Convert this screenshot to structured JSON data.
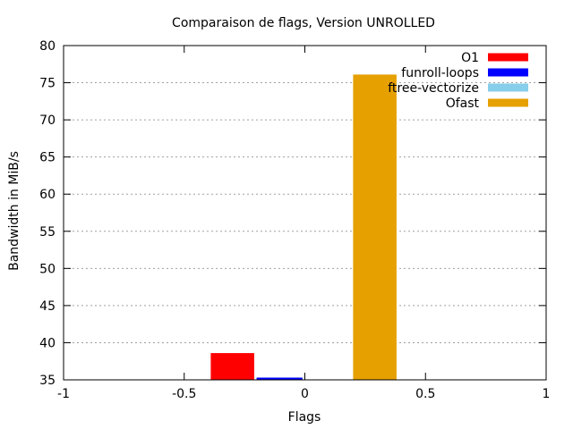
{
  "chart_data": {
    "type": "bar",
    "title": "Comparaison de flags, Version UNROLLED",
    "xlabel": "Flags",
    "ylabel": "Bandwidth in MiB/s",
    "xlim": [
      -1,
      1
    ],
    "ylim": [
      35,
      80
    ],
    "x_ticks": [
      "-1",
      "-0.5",
      "0",
      "0.5",
      "1"
    ],
    "y_ticks": [
      "35",
      "40",
      "45",
      "50",
      "55",
      "60",
      "65",
      "70",
      "75",
      "80"
    ],
    "grid": "horizontal dotted",
    "legend_position": "top-right",
    "series": [
      {
        "name": "O1",
        "color": "#ff0000",
        "x_start": -0.39,
        "x_end": -0.21,
        "value": 38.6
      },
      {
        "name": "funroll-loops",
        "color": "#0000ff",
        "x_start": -0.2,
        "x_end": -0.01,
        "value": 35.3
      },
      {
        "name": "ftree-vectorize",
        "color": "#87ceeb",
        "x_start": 0.01,
        "x_end": 0.2,
        "value": 35.0
      },
      {
        "name": "Ofast",
        "color": "#e6a000",
        "x_start": 0.2,
        "x_end": 0.38,
        "value": 76.1
      }
    ]
  }
}
